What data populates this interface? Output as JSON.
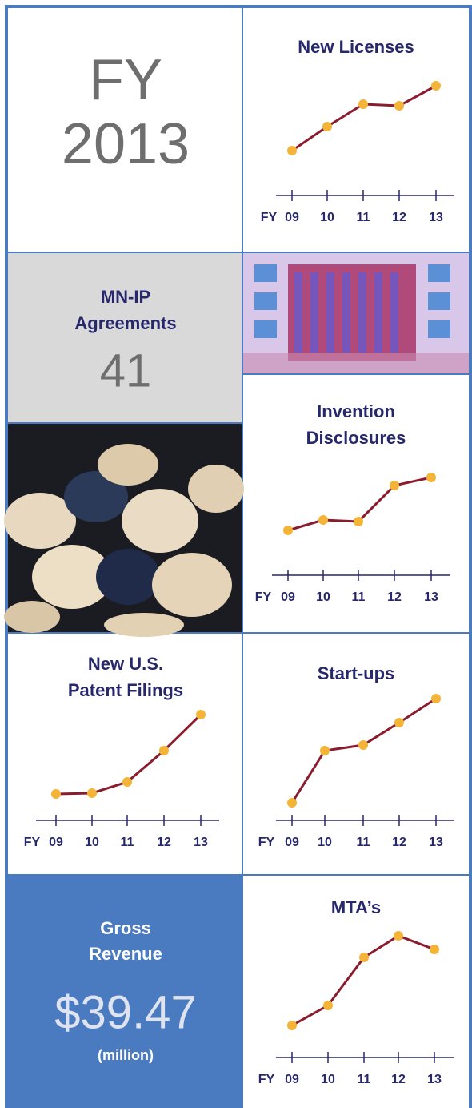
{
  "header": {
    "label": "FY",
    "year": "2013"
  },
  "stats": [
    {
      "label": [
        "MN-IP",
        "Agreements"
      ],
      "value": 41
    },
    {
      "label": [
        "Gross",
        "Revenue"
      ],
      "value": 39.47,
      "value_label": "$39.47",
      "unit": "(million)"
    }
  ],
  "chart_data": [
    {
      "type": "line",
      "title": [
        "New Licenses"
      ],
      "x_label": "FY",
      "categories": [
        "09",
        "10",
        "11",
        "12",
        "13"
      ],
      "values": [
        56,
        86,
        114,
        112,
        137
      ],
      "ylim": [
        0,
        160
      ],
      "color": "#8a1c2e",
      "marker_color": "#f4b437"
    },
    {
      "type": "line",
      "title": [
        "Invention",
        "Disclosures"
      ],
      "x_label": "FY",
      "categories": [
        "09",
        "10",
        "11",
        "12",
        "13"
      ],
      "values": [
        56,
        69,
        67,
        112,
        122
      ],
      "ylim": [
        0,
        160
      ],
      "color": "#8a1c2e",
      "marker_color": "#f4b437"
    },
    {
      "type": "line",
      "title": [
        "New U.S.",
        "Patent Filings"
      ],
      "x_label": "FY",
      "categories": [
        "09",
        "10",
        "11",
        "12",
        "13"
      ],
      "values": [
        33,
        34,
        48,
        87,
        132
      ],
      "ylim": [
        0,
        160
      ],
      "color": "#8a1c2e",
      "marker_color": "#f4b437"
    },
    {
      "type": "line",
      "title": [
        "Start-ups"
      ],
      "x_label": "FY",
      "categories": [
        "09",
        "10",
        "11",
        "12",
        "13"
      ],
      "values": [
        22,
        87,
        94,
        122,
        152
      ],
      "ylim": [
        0,
        160
      ],
      "color": "#8a1c2e",
      "marker_color": "#f4b437"
    },
    {
      "type": "line",
      "title": [
        "MTA’s"
      ],
      "x_label": "FY",
      "categories": [
        "09",
        "10",
        "11",
        "12",
        "13"
      ],
      "values": [
        40,
        65,
        125,
        152,
        135
      ],
      "ylim": [
        0,
        160
      ],
      "color": "#8a1c2e",
      "marker_color": "#f4b437"
    }
  ]
}
